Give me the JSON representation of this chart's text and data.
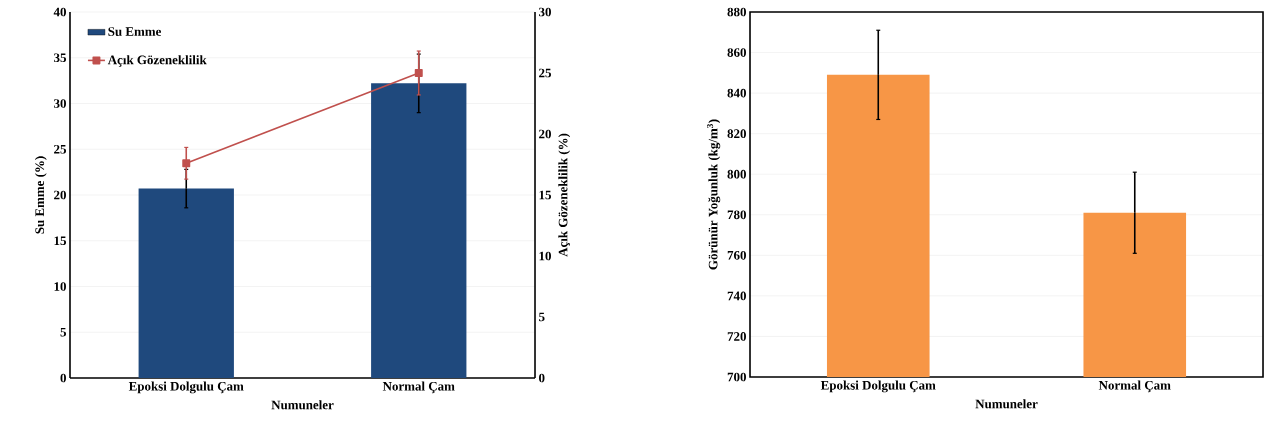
{
  "chart_data": [
    {
      "type": "bar",
      "xlabel": "Numuneler",
      "ylabel": "Su Emme (%)",
      "y2label": "Açık Gözeneklilik (%)",
      "categories": [
        "Epoksi Dolgulu Çam",
        "Normal Çam"
      ],
      "series": [
        {
          "name": "Su Emme",
          "type": "bar",
          "color": "#1f497d",
          "values": [
            20.7,
            32.2
          ],
          "errors": [
            2.1,
            3.2
          ]
        },
        {
          "name": "Açık Gözeneklilik",
          "type": "line",
          "axis": "y2",
          "color": "#c0504d",
          "marker": "square",
          "values": [
            17.6,
            25.0
          ],
          "errors": [
            1.3,
            1.8
          ]
        }
      ],
      "ylim": [
        0,
        40
      ],
      "yticks": [
        0,
        5,
        10,
        15,
        20,
        25,
        30,
        35,
        40
      ],
      "y2lim": [
        0,
        30
      ],
      "y2ticks": [
        0,
        5,
        10,
        15,
        20,
        25,
        30
      ],
      "grid": "y",
      "legend": "top left"
    },
    {
      "type": "bar",
      "xlabel": "Numuneler",
      "ylabel": "Görünür Yoğunluk (kg/m$^{3}$)",
      "categories": [
        "Epoksi Dolgulu Çam",
        "Normal Çam"
      ],
      "values": [
        849,
        781
      ],
      "errors": [
        22,
        20
      ],
      "color": "#f79646",
      "ylim": [
        700,
        880
      ],
      "yticks": [
        700,
        720,
        740,
        760,
        780,
        800,
        820,
        840,
        860,
        880
      ],
      "grid": "y"
    }
  ]
}
